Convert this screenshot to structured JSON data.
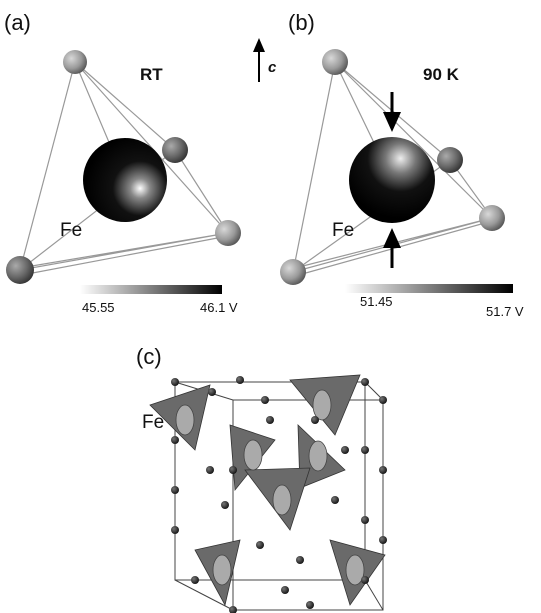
{
  "panels": {
    "a": {
      "label": "(a)",
      "condition": "RT",
      "atom": "Fe",
      "scale_min": "45.55",
      "scale_max": "46.1 V"
    },
    "b": {
      "label": "(b)",
      "condition": "90 K",
      "atom": "Fe",
      "scale_min": "51.45",
      "scale_max": "51.7 V",
      "axis": "c"
    },
    "c": {
      "label": "(c)",
      "atom": "Fe"
    }
  }
}
